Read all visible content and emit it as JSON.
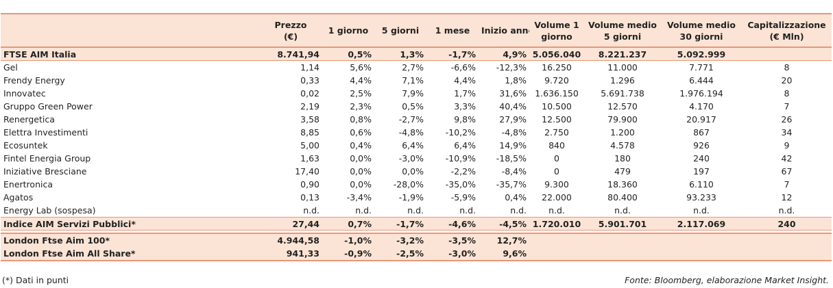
{
  "header": {
    "cols": [
      "Prezzo\n(€)",
      "1 giorno",
      "5 giorni",
      "1 mese",
      "Inizio anno",
      "Volume 1\ngiorno",
      "Volume medio\n5 giorni",
      "Volume medio\n30 giorni",
      "Capitalizzazione\n(€ Mln)"
    ]
  },
  "index_top": {
    "name": "FTSE AIM Italia",
    "values": [
      "8.741,94",
      "0,5%",
      "1,3%",
      "-1,7%",
      "4,9%",
      "5.056.040",
      "8.221.237",
      "5.092.999",
      ""
    ]
  },
  "rows": [
    {
      "name": "Gel",
      "values": [
        "1,14",
        "5,6%",
        "2,7%",
        "-6,6%",
        "-12,3%",
        "16.250",
        "11.000",
        "7.771",
        "8"
      ]
    },
    {
      "name": "Frendy Energy",
      "values": [
        "0,33",
        "4,4%",
        "7,1%",
        "4,4%",
        "1,8%",
        "9.720",
        "1.296",
        "6.444",
        "20"
      ]
    },
    {
      "name": "Innovatec",
      "values": [
        "0,02",
        "2,5%",
        "7,9%",
        "1,7%",
        "31,6%",
        "1.636.150",
        "5.691.738",
        "1.976.194",
        "8"
      ]
    },
    {
      "name": "Gruppo Green Power",
      "values": [
        "2,19",
        "2,3%",
        "0,5%",
        "3,3%",
        "40,4%",
        "10.500",
        "12.570",
        "4.170",
        "7"
      ]
    },
    {
      "name": "Renergetica",
      "values": [
        "3,58",
        "0,8%",
        "-2,7%",
        "9,8%",
        "27,9%",
        "12.500",
        "79.900",
        "20.917",
        "26"
      ]
    },
    {
      "name": "Elettra Investimenti",
      "values": [
        "8,85",
        "0,6%",
        "-4,8%",
        "-10,2%",
        "-4,8%",
        "2.750",
        "1.200",
        "867",
        "34"
      ]
    },
    {
      "name": "Ecosuntek",
      "values": [
        "5,00",
        "0,4%",
        "6,4%",
        "6,4%",
        "14,9%",
        "840",
        "4.578",
        "926",
        "9"
      ]
    },
    {
      "name": "Fintel Energia Group",
      "values": [
        "1,63",
        "0,0%",
        "-3,0%",
        "-10,9%",
        "-18,5%",
        "0",
        "180",
        "240",
        "42"
      ]
    },
    {
      "name": "Iniziative Bresciane",
      "values": [
        "17,40",
        "0,0%",
        "0,0%",
        "-2,2%",
        "-8,4%",
        "0",
        "479",
        "197",
        "67"
      ]
    },
    {
      "name": "Enertronica",
      "values": [
        "0,90",
        "0,0%",
        "-28,0%",
        "-35,0%",
        "-35,7%",
        "9.300",
        "18.360",
        "6.110",
        "7"
      ]
    },
    {
      "name": "Agatos",
      "values": [
        "0,13",
        "-3,4%",
        "-1,9%",
        "-5,9%",
        "0,4%",
        "22.000",
        "80.400",
        "93.233",
        "12"
      ]
    },
    {
      "name": "Energy Lab (sospesa)",
      "values": [
        "n.d.",
        "n.d.",
        "n.d.",
        "n.d.",
        "n.d.",
        "n.d.",
        "n.d.",
        "n.d.",
        "n.d."
      ]
    }
  ],
  "index_bottom": {
    "name": "Indice AIM Servizi Pubblici*",
    "values": [
      "27,44",
      "0,7%",
      "-1,7%",
      "-4,6%",
      "-4,5%",
      "1.720.010",
      "5.901.701",
      "2.117.069",
      "240"
    ]
  },
  "london": [
    {
      "name": "London Ftse Aim 100*",
      "values": [
        "4.944,58",
        "-1,0%",
        "-3,2%",
        "-3,5%",
        "12,7%"
      ]
    },
    {
      "name": "London Ftse Aim All Share*",
      "values": [
        "941,33",
        "-0,9%",
        "-2,5%",
        "-3,0%",
        "9,6%"
      ]
    }
  ],
  "footnote": "(*) Dati in punti",
  "source": "Fonte: Bloomberg, elaborazione Market Insight."
}
